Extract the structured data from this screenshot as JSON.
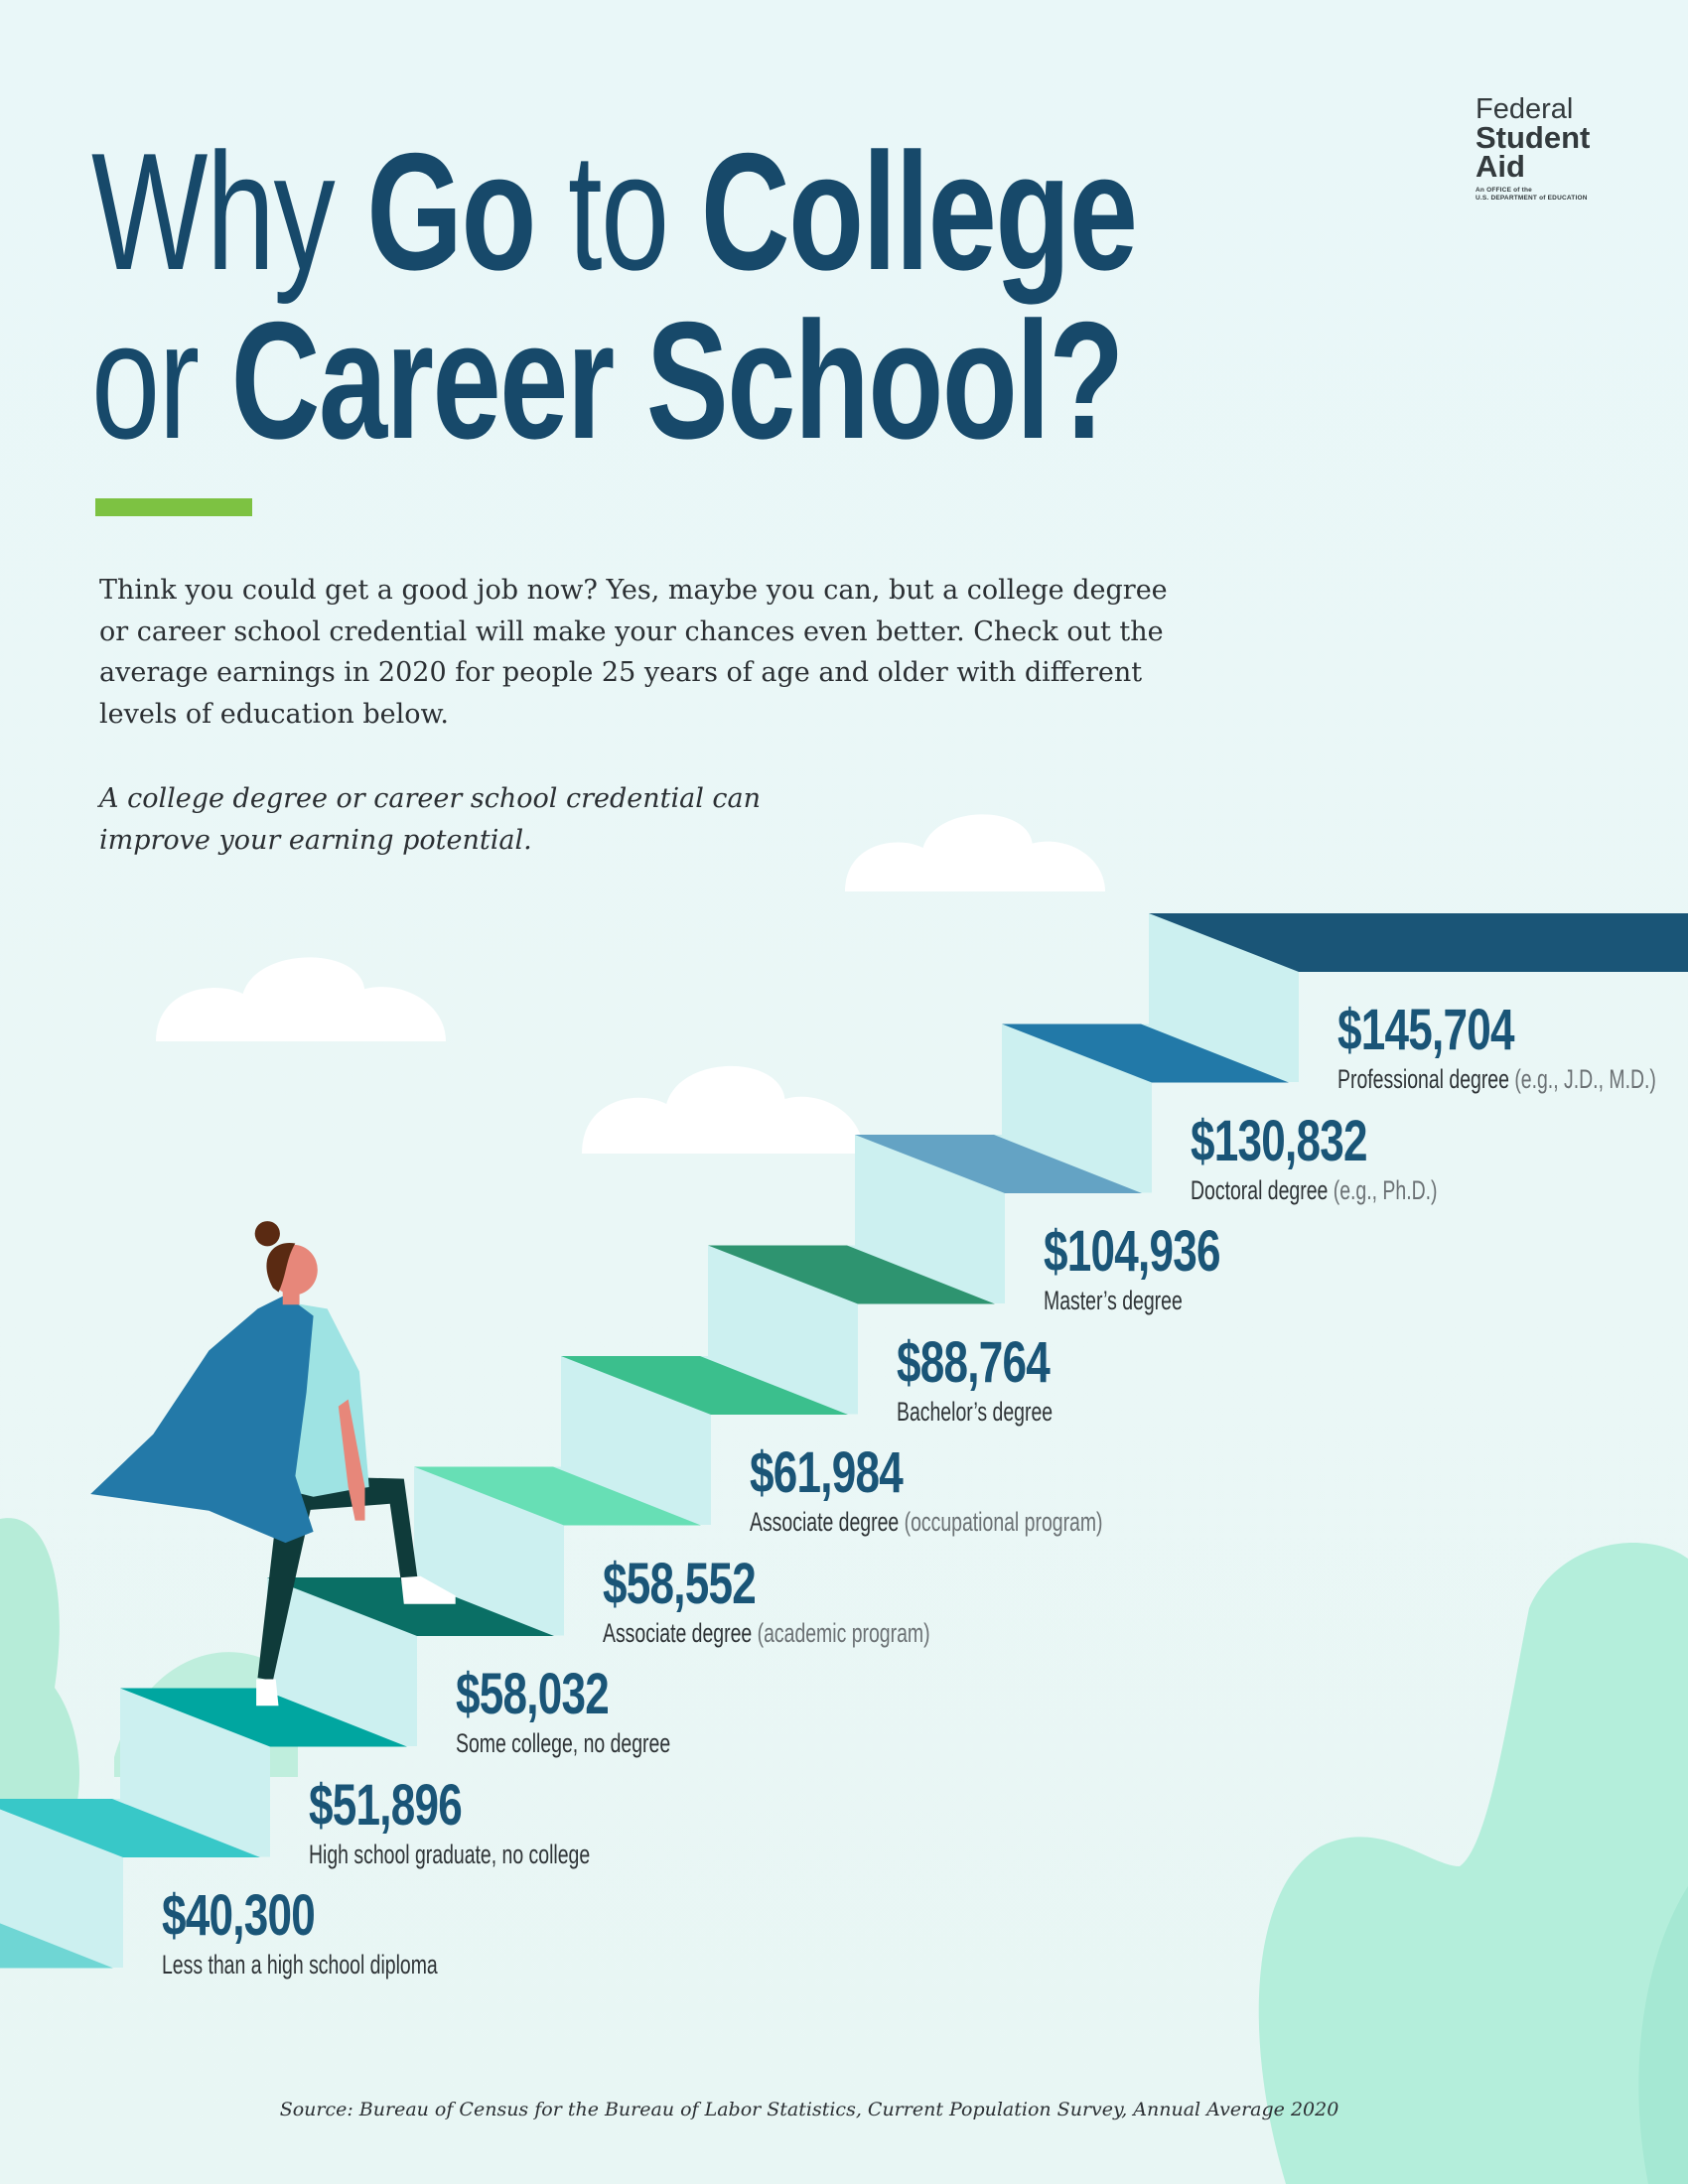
{
  "logo": {
    "line1": "Federal",
    "line2": "Student",
    "line3": "Aid",
    "tagline1": "An OFFICE of the",
    "tagline2": "U.S. DEPARTMENT of EDUCATION"
  },
  "title": {
    "why": "Why",
    "go": "Go",
    "to": "to",
    "college": "College",
    "or": "or",
    "career_school": "Career School?"
  },
  "intro": "Think you could get a good job now? Yes, maybe you can, but a college degree or career school credential will make your chances even better. Check out the average earnings in 2020 for people 25 years of age and older with different levels of education below.",
  "tagline": "A college degree or career school credential can improve your earning potential.",
  "chart_data": {
    "type": "bar",
    "title": "",
    "categories": [
      "Less than a high school diploma",
      "High school graduate, no college",
      "Some college, no degree",
      "Associate degree (academic program)",
      "Associate degree (occupational program)",
      "Bachelor's degree",
      "Master's degree",
      "Doctoral degree (e.g., Ph.D.)",
      "Professional degree (e.g., J.D., M.D.)"
    ],
    "values": [
      40300,
      51896,
      58032,
      58552,
      61984,
      88764,
      104936,
      130832,
      145704
    ]
  },
  "steps": [
    {
      "amount": "$40,300",
      "label": "Less than a high school diploma",
      "note": "",
      "color": "#38c8c8"
    },
    {
      "amount": "$51,896",
      "label": "High school graduate, no college",
      "note": "",
      "color": "#00a6a0"
    },
    {
      "amount": "$58,032",
      "label": "Some college, no degree",
      "note": "",
      "color": "#0a6f65"
    },
    {
      "amount": "$58,552",
      "label": "Associate degree",
      "note": "(academic program)",
      "color": "#67dfb5"
    },
    {
      "amount": "$61,984",
      "label": "Associate degree",
      "note": "(occupational program)",
      "color": "#3bbf8d"
    },
    {
      "amount": "$88,764",
      "label": "Bachelor’s degree",
      "note": "",
      "color": "#2e9470"
    },
    {
      "amount": "$104,936",
      "label": "Master’s degree",
      "note": "",
      "color": "#64a3c4"
    },
    {
      "amount": "$130,832",
      "label": "Doctoral degree",
      "note": "(e.g., Ph.D.)",
      "color": "#2279a8"
    },
    {
      "amount": "$145,704",
      "label": "Professional degree",
      "note": "(e.g., J.D., M.D.)",
      "color": "#1a5577"
    }
  ],
  "colors": {
    "title": "#17496a",
    "accent": "#7dc242",
    "riser": "#ccf0f0",
    "cape": "#2379a8"
  },
  "source": "Source: Bureau of Census for the Bureau of Labor Statistics, Current Population Survey, Annual Average 2020"
}
